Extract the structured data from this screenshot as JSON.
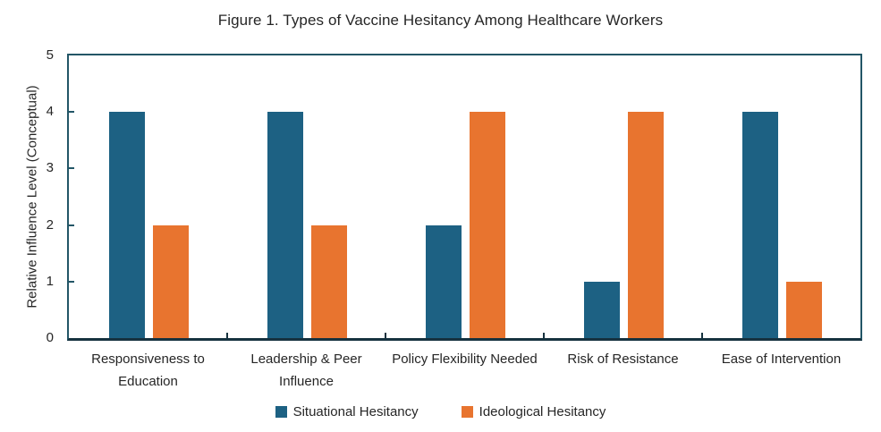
{
  "chart_data": {
    "type": "bar",
    "title": "Figure 1. Types of Vaccine Hesitancy Among Healthcare Workers",
    "xlabel": "",
    "ylabel": "Relative Influence Level (Conceptual)",
    "ylim": [
      0,
      5
    ],
    "yticks": [
      0,
      1,
      2,
      3,
      4,
      5
    ],
    "grid": false,
    "legend_position": "bottom",
    "categories": [
      "Responsiveness to Education",
      "Leadership & Peer Influence",
      "Policy Flexibility Needed",
      "Risk of Resistance",
      "Ease of Intervention"
    ],
    "category_label_lines": [
      [
        "Responsiveness to",
        "Education"
      ],
      [
        "Leadership & Peer",
        "Influence"
      ],
      [
        "Policy Flexibility Needed"
      ],
      [
        "Risk of Resistance"
      ],
      [
        "Ease of Intervention"
      ]
    ],
    "series": [
      {
        "name": "Situational Hesitancy",
        "color": "#1D6183",
        "values": [
          4,
          4,
          2,
          1,
          4
        ]
      },
      {
        "name": "Ideological Hesitancy",
        "color": "#E8742F",
        "values": [
          2,
          2,
          4,
          4,
          1
        ]
      }
    ],
    "colors": {
      "plot_border": "#235667",
      "axis_line": "#16323F",
      "text": "#262626"
    }
  }
}
